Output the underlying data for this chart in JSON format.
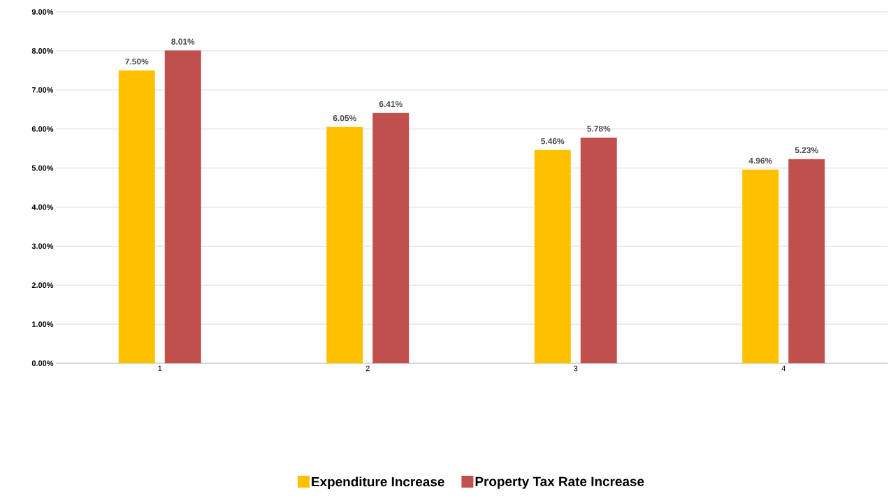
{
  "chart_data": {
    "type": "bar",
    "categories": [
      "1",
      "2",
      "3",
      "4"
    ],
    "series": [
      {
        "name": "Expenditure Increase",
        "color": "#ffc000",
        "values": [
          7.5,
          6.05,
          5.46,
          4.96
        ],
        "value_labels": [
          "7.50%",
          "6.05%",
          "5.46%",
          "4.96%"
        ]
      },
      {
        "name": "Property Tax Rate Increase",
        "color": "#c0504d",
        "values": [
          8.01,
          6.41,
          5.78,
          5.23
        ],
        "value_labels": [
          "8.01%",
          "6.41%",
          "5.78%",
          "5.23%"
        ]
      }
    ],
    "ylim": [
      0,
      9
    ],
    "yticks": [
      {
        "value": 0,
        "label": "0.00%"
      },
      {
        "value": 1,
        "label": "1.00%"
      },
      {
        "value": 2,
        "label": "2.00%"
      },
      {
        "value": 3,
        "label": "3.00%"
      },
      {
        "value": 4,
        "label": "4.00%"
      },
      {
        "value": 5,
        "label": "5.00%"
      },
      {
        "value": 6,
        "label": "6.00%"
      },
      {
        "value": 7,
        "label": "7.00%"
      },
      {
        "value": 8,
        "label": "8.00%"
      },
      {
        "value": 9,
        "label": "9.00%"
      }
    ],
    "grid": "y",
    "legend": "bottom"
  }
}
